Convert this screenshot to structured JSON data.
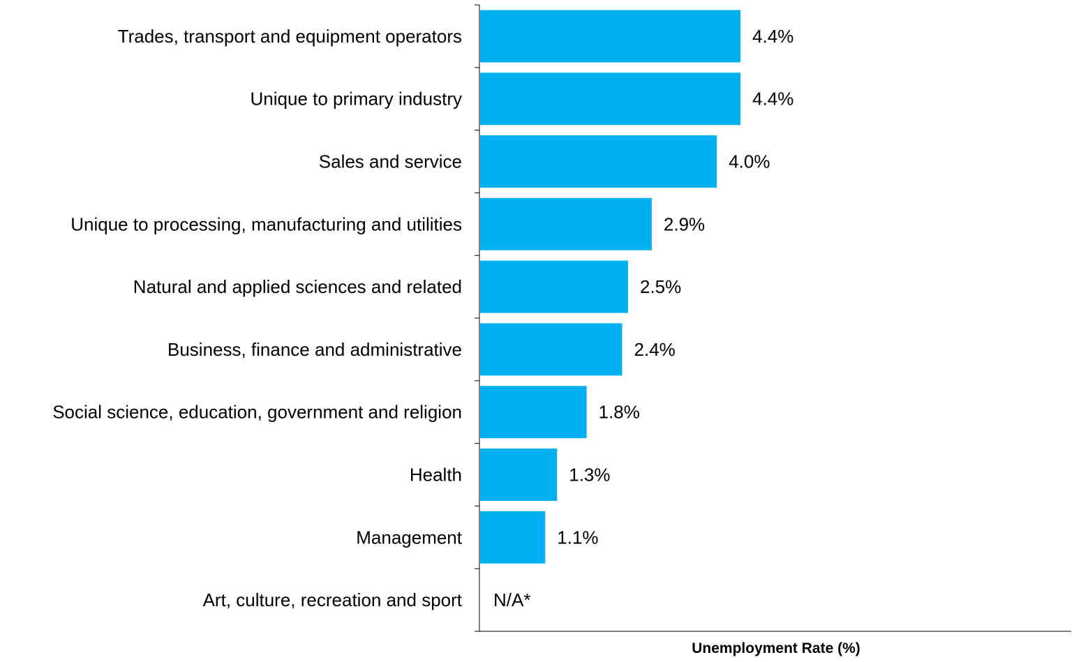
{
  "chart_data": {
    "type": "bar",
    "orientation": "horizontal",
    "categories": [
      "Trades, transport and equipment operators",
      "Unique to primary industry",
      "Sales and service",
      "Unique to processing, manufacturing and utilities",
      "Natural and applied sciences and related",
      "Business, finance and administrative",
      "Social science, education, government and religion",
      "Health",
      "Management",
      "Art, culture, recreation and sport"
    ],
    "values": [
      4.4,
      4.4,
      4.0,
      2.9,
      2.5,
      2.4,
      1.8,
      1.3,
      1.1,
      null
    ],
    "value_labels": [
      "4.4%",
      "4.4%",
      "4.0%",
      "2.9%",
      "2.5%",
      "2.4%",
      "1.8%",
      "1.3%",
      "1.1%",
      "N/A*"
    ],
    "xlabel": "Unemployment Rate (%)",
    "ylabel": "",
    "title": "",
    "xlim": [
      0,
      10
    ],
    "bar_color": "#00B0F0",
    "grid": false,
    "legend": "none"
  }
}
